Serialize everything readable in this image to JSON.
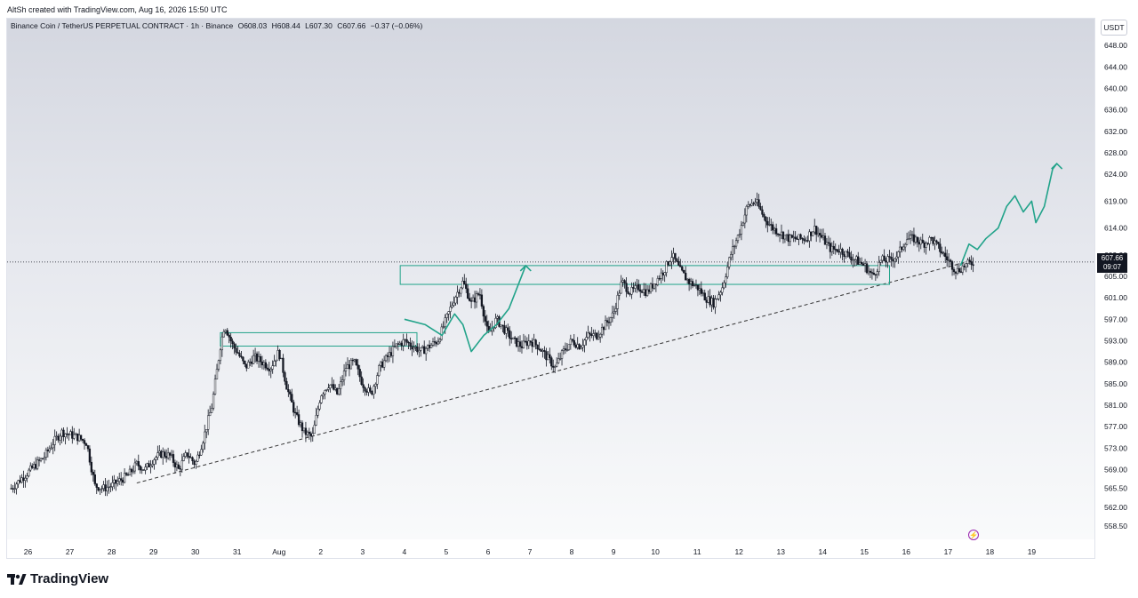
{
  "header": {
    "attribution": "AltSh created with TradingView.com, Aug 16, 2026 15:50 UTC"
  },
  "legend": {
    "symbol": "Binance Coin / TetherUS PERPETUAL CONTRACT · 1h · Binance",
    "open": "O608.03",
    "high": "H608.44",
    "low": "L607.30",
    "close": "C607.66",
    "change": "−0.37 (−0.06%)"
  },
  "currency_button": "USDT",
  "price_tag": {
    "price": "607.66",
    "countdown": "09:07"
  },
  "brand": "TradingView",
  "colors": {
    "candle": "#131722",
    "accent": "#22a38a",
    "trendline": "#333333",
    "background_top": "#d4d7e0"
  },
  "chart_data": {
    "type": "candlestick",
    "interval": "1h",
    "y_ticks": [
      648.0,
      644.0,
      640.0,
      636.0,
      632.0,
      628.0,
      624.0,
      619.0,
      614.0,
      609.0,
      605.0,
      601.0,
      597.0,
      593.0,
      589.0,
      585.0,
      581.0,
      577.0,
      573.0,
      569.0,
      565.5,
      562.0,
      558.5
    ],
    "y_tick_labels": [
      "648.00",
      "644.00",
      "640.00",
      "636.00",
      "632.00",
      "628.00",
      "624.00",
      "619.00",
      "614.00",
      "609.00",
      "605.00",
      "601.00",
      "597.00",
      "593.00",
      "589.00",
      "585.00",
      "581.00",
      "577.00",
      "573.00",
      "569.00",
      "565.50",
      "562.00",
      "558.50"
    ],
    "x_ticks": [
      "26",
      "27",
      "28",
      "29",
      "30",
      "31",
      "Aug",
      "2",
      "3",
      "4",
      "5",
      "6",
      "7",
      "8",
      "9",
      "10",
      "11",
      "12",
      "13",
      "14",
      "15",
      "16",
      "17",
      "18",
      "19"
    ],
    "price_path": [
      [
        25.6,
        565.5
      ],
      [
        25.8,
        567
      ],
      [
        26.0,
        568.5
      ],
      [
        26.2,
        570
      ],
      [
        26.4,
        571.5
      ],
      [
        26.6,
        574
      ],
      [
        26.8,
        576
      ],
      [
        27.0,
        575.5
      ],
      [
        27.2,
        575
      ],
      [
        27.4,
        574
      ],
      [
        27.6,
        566
      ],
      [
        27.8,
        565.5
      ],
      [
        28.0,
        566
      ],
      [
        28.2,
        567
      ],
      [
        28.4,
        568
      ],
      [
        28.6,
        570
      ],
      [
        28.8,
        569
      ],
      [
        29.0,
        571
      ],
      [
        29.2,
        572
      ],
      [
        29.4,
        571.5
      ],
      [
        29.6,
        569
      ],
      [
        29.8,
        572
      ],
      [
        30.0,
        570
      ],
      [
        30.2,
        575
      ],
      [
        30.4,
        581
      ],
      [
        30.6,
        592
      ],
      [
        30.7,
        596
      ],
      [
        30.9,
        592
      ],
      [
        31.0,
        591
      ],
      [
        31.2,
        588
      ],
      [
        31.4,
        590
      ],
      [
        31.6,
        589
      ],
      [
        31.8,
        588
      ],
      [
        32.0,
        591
      ],
      [
        32.2,
        584
      ],
      [
        32.4,
        579
      ],
      [
        32.6,
        576
      ],
      [
        32.8,
        575
      ],
      [
        33.0,
        583
      ],
      [
        33.2,
        585
      ],
      [
        33.4,
        583
      ],
      [
        33.6,
        588
      ],
      [
        33.8,
        589
      ],
      [
        34.0,
        585
      ],
      [
        34.2,
        583
      ],
      [
        34.4,
        588
      ],
      [
        34.6,
        590
      ],
      [
        34.8,
        592
      ],
      [
        35.0,
        593
      ],
      [
        35.2,
        592
      ],
      [
        35.4,
        591
      ],
      [
        35.6,
        592
      ],
      [
        35.8,
        593
      ],
      [
        36.0,
        597
      ],
      [
        36.2,
        601
      ],
      [
        36.4,
        604
      ],
      [
        36.6,
        600
      ],
      [
        36.8,
        602
      ],
      [
        37.0,
        594
      ],
      [
        37.2,
        597
      ],
      [
        37.4,
        595
      ],
      [
        37.6,
        593
      ],
      [
        37.8,
        592
      ],
      [
        38.0,
        593
      ],
      [
        38.2,
        592
      ],
      [
        38.4,
        590
      ],
      [
        38.6,
        588
      ],
      [
        38.8,
        591
      ],
      [
        39.0,
        593
      ],
      [
        39.2,
        592
      ],
      [
        39.4,
        594
      ],
      [
        39.6,
        594
      ],
      [
        39.8,
        596
      ],
      [
        40.0,
        598
      ],
      [
        40.2,
        604
      ],
      [
        40.4,
        602
      ],
      [
        40.6,
        603
      ],
      [
        40.8,
        602
      ],
      [
        41.0,
        604
      ],
      [
        41.2,
        606
      ],
      [
        41.4,
        609
      ],
      [
        41.6,
        606
      ],
      [
        41.8,
        604
      ],
      [
        42.0,
        603
      ],
      [
        42.2,
        601
      ],
      [
        42.4,
        600
      ],
      [
        42.6,
        603
      ],
      [
        42.8,
        609
      ],
      [
        43.0,
        613
      ],
      [
        43.2,
        618
      ],
      [
        43.4,
        619
      ],
      [
        43.6,
        616
      ],
      [
        43.8,
        614
      ],
      [
        44.0,
        613
      ],
      [
        44.2,
        612
      ],
      [
        44.4,
        612
      ],
      [
        44.6,
        612
      ],
      [
        44.8,
        614
      ],
      [
        45.0,
        612
      ],
      [
        45.2,
        610
      ],
      [
        45.4,
        610
      ],
      [
        45.6,
        609
      ],
      [
        45.8,
        608
      ],
      [
        46.0,
        607
      ],
      [
        46.2,
        605
      ],
      [
        46.4,
        608
      ],
      [
        46.6,
        608
      ],
      [
        46.8,
        609
      ],
      [
        47.0,
        612
      ],
      [
        47.2,
        612
      ],
      [
        47.4,
        611
      ],
      [
        47.6,
        612
      ],
      [
        47.8,
        610
      ],
      [
        48.0,
        608
      ],
      [
        48.2,
        606
      ],
      [
        48.4,
        607
      ],
      [
        48.6,
        607.66
      ]
    ],
    "zones": [
      {
        "from_x": 30.6,
        "to_x": 35.3,
        "low": 592.0,
        "high": 594.5
      },
      {
        "from_x": 34.9,
        "to_x": 46.6,
        "low": 603.5,
        "high": 607.0
      }
    ],
    "trendline": {
      "from": [
        28.6,
        566.5
      ],
      "to": [
        48.6,
        608.0
      ]
    },
    "projections": [
      {
        "path": [
          [
            35.0,
            597
          ],
          [
            35.5,
            596
          ],
          [
            35.9,
            594
          ],
          [
            36.2,
            598
          ],
          [
            36.4,
            596
          ],
          [
            36.6,
            591
          ],
          [
            36.9,
            594
          ],
          [
            37.2,
            596
          ],
          [
            37.5,
            599
          ],
          [
            37.7,
            603
          ],
          [
            37.9,
            607
          ]
        ]
      },
      {
        "path": [
          [
            48.3,
            607
          ],
          [
            48.5,
            611
          ],
          [
            48.7,
            610
          ],
          [
            48.9,
            612
          ],
          [
            49.2,
            614
          ],
          [
            49.4,
            618
          ],
          [
            49.6,
            620
          ],
          [
            49.8,
            617
          ],
          [
            50.0,
            619
          ],
          [
            50.1,
            615
          ],
          [
            50.3,
            618
          ],
          [
            50.5,
            625
          ],
          [
            50.6,
            626
          ]
        ]
      }
    ],
    "current_price_line": 607.66,
    "ylim": [
      556.0,
      653.0
    ],
    "xlim": [
      25.5,
      51.5
    ]
  }
}
